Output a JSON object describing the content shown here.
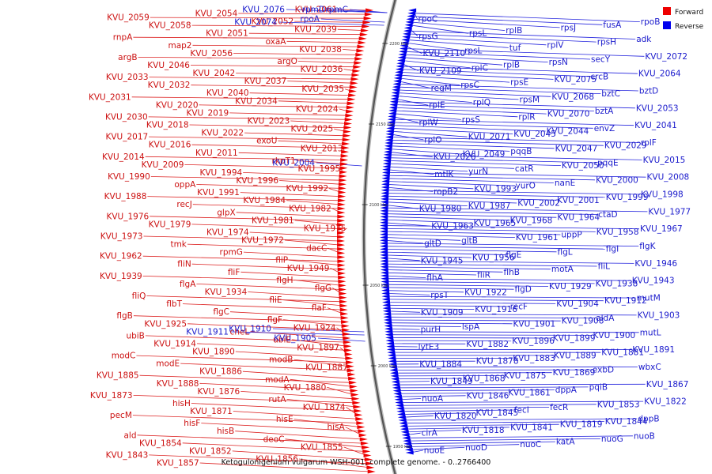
{
  "caption": "Ketogulonigenium vulgarum WSH-001, complete genome. - 0..2766400",
  "legend": [
    {
      "label": "Forward",
      "color": "#ee0000"
    },
    {
      "label": "Reverse",
      "color": "#0000ee"
    }
  ],
  "ticks": [
    "2200 kbp",
    "2150 kbp",
    "2100 kbp",
    "2050 kbp",
    "2000 kbp",
    "1950 kbp"
  ],
  "forward_labels": [
    "KVU_2061",
    "KVU_2054",
    "KVU_2059",
    "KVU_2052",
    "KVU_2058",
    "KVU_2039",
    "KVU_2051",
    "rnpA",
    "oxaA",
    "map2",
    "KVU_2038",
    "KVU_2056",
    "argB",
    "argO",
    "KVU_2046",
    "KVU_2036",
    "KVU_2042",
    "KVU_2033",
    "KVU_2037",
    "KVU_2032",
    "KVU_2035",
    "KVU_2040",
    "KVU_2031",
    "KVU_2034",
    "KVU_2020",
    "KVU_2024",
    "KVU_2019",
    "KVU_2030",
    "KVU_2023",
    "KVU_2018",
    "KVU_2025",
    "KVU_2022",
    "KVU_2017",
    "exoU",
    "KVU_2016",
    "KVU_2013",
    "KVU_2011",
    "KVU_2014",
    "rkpT1",
    "KVU_2009",
    "KVU_1995",
    "KVU_1994",
    "KVU_1990",
    "KVU_1996",
    "oppA",
    "KVU_1992",
    "KVU_1991",
    "KVU_1988",
    "KVU_1984",
    "recJ",
    "KVU_1982",
    "glpX",
    "KVU_1976",
    "KVU_1981",
    "KVU_1979",
    "KVU_1975",
    "KVU_1974",
    "KVU_1973",
    "KVU_1972",
    "tmk",
    "dacC",
    "rpmG",
    "KVU_1962",
    "fliP",
    "fliN",
    "KVU_1949",
    "fliF",
    "KVU_1939",
    "flgH",
    "flgA",
    "flgG",
    "KVU_1934",
    "fliQ",
    "fliE",
    "flbT",
    "flaF",
    "flgC",
    "flgB",
    "flgF",
    "KVU_1925",
    "KVU_1924",
    "cheL",
    "ubiB",
    "ubiE",
    "KVU_1914",
    "KVU_1897",
    "KVU_1890",
    "modC",
    "modB",
    "modE",
    "KVU_1887",
    "KVU_1886",
    "KVU_1885",
    "modA",
    "KVU_1888",
    "KVU_1880",
    "KVU_1876",
    "KVU_1873",
    "rutA",
    "hisH",
    "KVU_1874",
    "KVU_1871",
    "pecM",
    "hisE",
    "hisF",
    "hisA",
    "hisB",
    "ald",
    "deoC",
    "KVU_1854",
    "KVU_1855",
    "KVU_1852",
    "KVU_1843",
    "KVU_1856",
    "KVU_1857"
  ],
  "reverse_labels_left": [
    "KVU_2076",
    "rpmD",
    "rpmC",
    "rpoA",
    "KVU_2074",
    "KVU_2004",
    "KVU_1911",
    "KVU_1910",
    "KVU_1905"
  ],
  "reverse_labels": [
    "rpoC",
    "rpoB",
    "fusA",
    "rpsJ",
    "rplB",
    "rpsL",
    "rpsG",
    "adk",
    "rpsH",
    "rplV",
    "tuf",
    "rpsL",
    "KVU_2110",
    "KVU_2072",
    "secY",
    "rpsN",
    "rplB",
    "rplC",
    "KVU_2109",
    "KVU_2064",
    "crcB",
    "KVU_2075",
    "rpsE",
    "rpsC",
    "regM",
    "bztD",
    "bztC",
    "KVU_2068",
    "rpsM",
    "rplQ",
    "rplE",
    "KVU_2053",
    "bztA",
    "KVU_2070",
    "rplR",
    "rpsS",
    "rplW",
    "KVU_2041",
    "envZ",
    "KVU_2044",
    "KVU_2045",
    "KVU_2071",
    "rplO",
    "rplF",
    "KVU_2029",
    "KVU_2047",
    "pqqB",
    "KVU_2049",
    "KVU_2026",
    "KVU_2015",
    "pqqE",
    "KVU_2050",
    "catR",
    "yurN",
    "mtlK",
    "KVU_2008",
    "KVU_2000",
    "nanE",
    "yurO",
    "KVU_1993",
    "ropB2",
    "KVU_1998",
    "KVU_1999",
    "KVU_2001",
    "KVU_2002",
    "KVU_1987",
    "KVU_1980",
    "KVU_1977",
    "ctaD",
    "KVU_1964",
    "KVU_1968",
    "KVU_1965",
    "KVU_1963",
    "KVU_1967",
    "KVU_1958",
    "uppP",
    "KVU_1961",
    "gltB",
    "gltD",
    "flgK",
    "flgI",
    "flgL",
    "flgE",
    "KVU_1956",
    "KVU_1945",
    "KVU_1946",
    "fliL",
    "motA",
    "flhB",
    "fliR",
    "flhA",
    "KVU_1943",
    "KVU_1938",
    "KVU_1929",
    "flgD",
    "KVU_1922",
    "rpsT",
    "mutM",
    "KVU_1912",
    "KVU_1904",
    "recF",
    "KVU_1916",
    "KVU_1909",
    "KVU_1903",
    "aldA",
    "KVU_1908",
    "KVU_1901",
    "lspA",
    "purH",
    "mutL",
    "KVU_1900",
    "KVU_1899",
    "KVU_1896",
    "KVU_1882",
    "lytE3",
    "KVU_1891",
    "KVU_1881",
    "KVU_1889",
    "KVU_1883",
    "KVU_1878",
    "KVU_1884",
    "wbxC",
    "exbD",
    "KVU_1869",
    "KVU_1875",
    "KVU_1868",
    "KVU_1849",
    "KVU_1867",
    "pqiB",
    "dppA",
    "KVU_1861",
    "KVU_1846",
    "nuoA",
    "KVU_1822",
    "KVU_1853",
    "fecR",
    "fecI",
    "KVU_1845",
    "KVU_1820",
    "dppB",
    "KVU_1844",
    "KVU_1819",
    "KVU_1841",
    "KVU_1818",
    "cirA",
    "nuoB",
    "nuoG",
    "katA",
    "nuoC",
    "nuoD",
    "nuoE"
  ]
}
